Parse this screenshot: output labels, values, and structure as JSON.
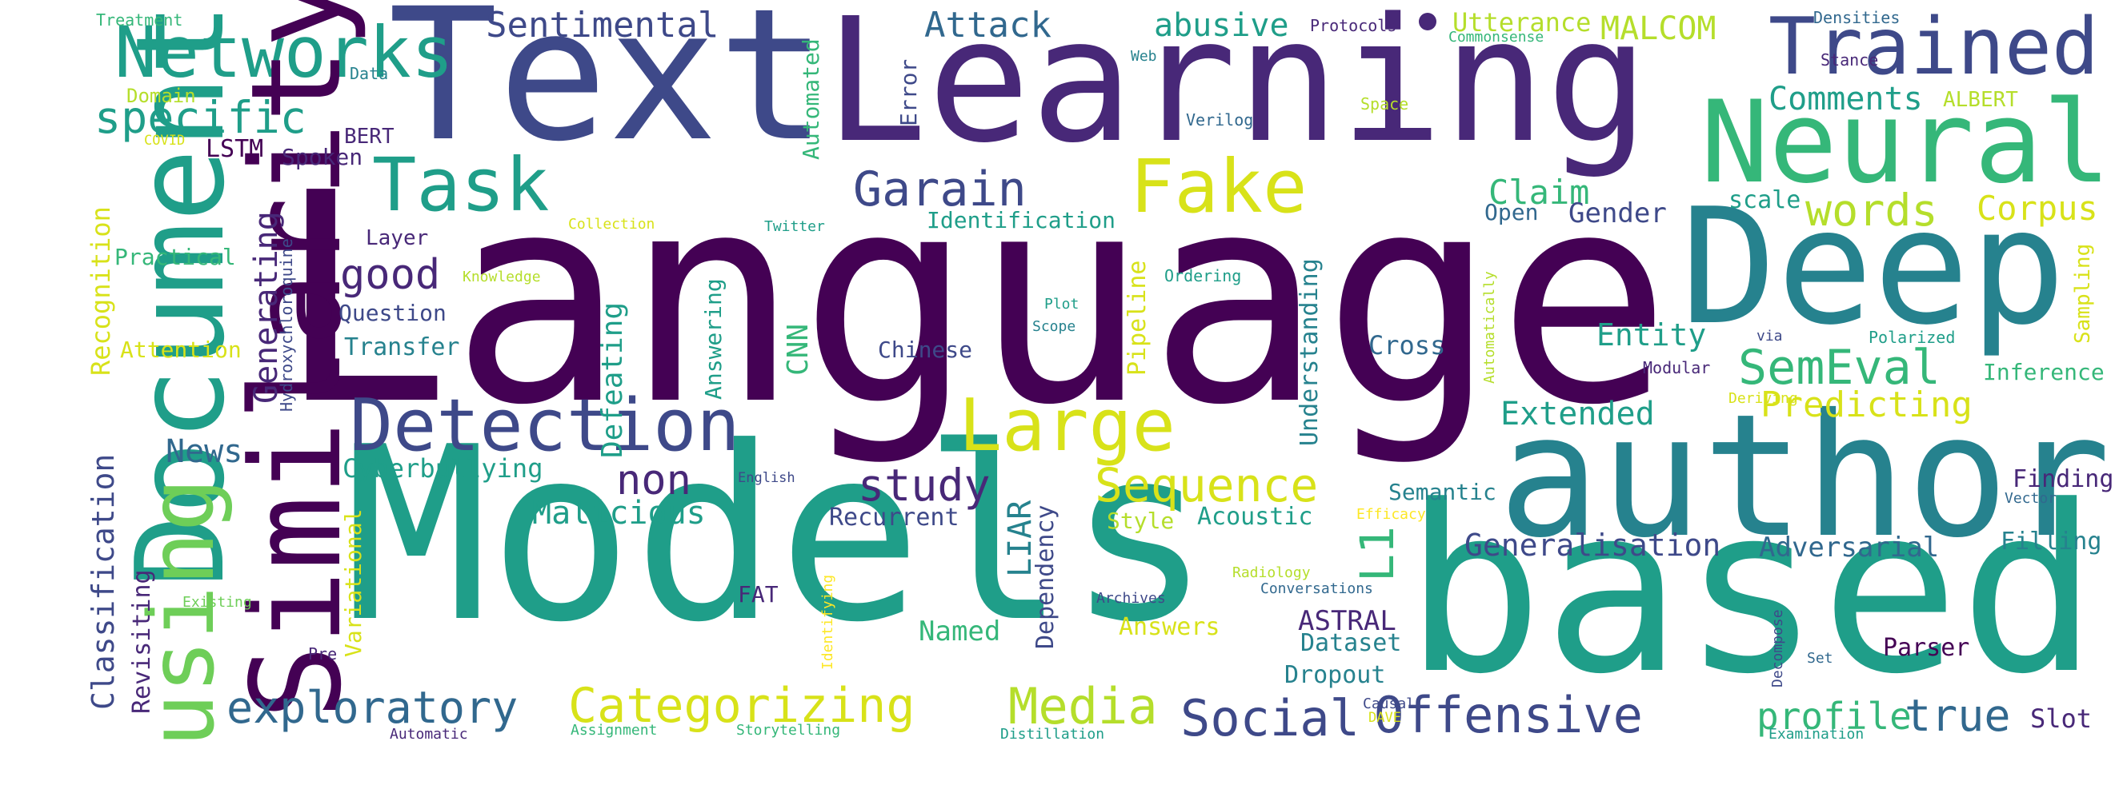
{
  "palette": {
    "p1": "#440154",
    "p2": "#482878",
    "p3": "#3e4989",
    "p4": "#31688e",
    "p5": "#26828e",
    "p6": "#1f9e89",
    "p7": "#35b779",
    "p8": "#6ece58",
    "p9": "#b5de2b",
    "p10": "#d8e219",
    "p11": "#fde725"
  },
  "words": [
    {
      "t": "Language",
      "c": "p1"
    },
    {
      "t": "Models",
      "c": "p6"
    },
    {
      "t": "based",
      "c": "p6"
    },
    {
      "t": "Text",
      "c": "p3"
    },
    {
      "t": "Learning",
      "c": "p2"
    },
    {
      "t": "author",
      "c": "p5"
    },
    {
      "t": "Deep",
      "c": "p5"
    },
    {
      "t": "Neural",
      "c": "p7"
    },
    {
      "t": "Trained",
      "c": "p3"
    },
    {
      "t": "Task",
      "c": "p6"
    },
    {
      "t": "Fake",
      "c": "p10"
    },
    {
      "t": "Large",
      "c": "p10"
    },
    {
      "t": "Detection",
      "c": "p3"
    },
    {
      "t": "Networks",
      "c": "p6"
    },
    {
      "t": "Document",
      "c": "p6"
    },
    {
      "t": "Similarity",
      "c": "p1"
    },
    {
      "t": "using",
      "c": "p8"
    },
    {
      "t": "specific",
      "c": "p6"
    },
    {
      "t": "Garain",
      "c": "p3"
    },
    {
      "t": "Sentimental",
      "c": "p3"
    },
    {
      "t": "Attack",
      "c": "p4"
    },
    {
      "t": "abusive",
      "c": "p6"
    },
    {
      "t": "Utterance",
      "c": "p9"
    },
    {
      "t": "MALCOM",
      "c": "p9"
    },
    {
      "t": "Comments",
      "c": "p6"
    },
    {
      "t": "ALBERT",
      "c": "p9"
    },
    {
      "t": "Claim",
      "c": "p7"
    },
    {
      "t": "words",
      "c": "p9"
    },
    {
      "t": "Corpus",
      "c": "p10"
    },
    {
      "t": "Gender",
      "c": "p3"
    },
    {
      "t": "scale",
      "c": "p6"
    },
    {
      "t": "Open",
      "c": "p4"
    },
    {
      "t": "SemEval",
      "c": "p7"
    },
    {
      "t": "Predicting",
      "c": "p10"
    },
    {
      "t": "Extended",
      "c": "p6"
    },
    {
      "t": "Entity",
      "c": "p6"
    },
    {
      "t": "Inference",
      "c": "p7"
    },
    {
      "t": "Sequence",
      "c": "p10"
    },
    {
      "t": "study",
      "c": "p2"
    },
    {
      "t": "non",
      "c": "p2"
    },
    {
      "t": "News",
      "c": "p4"
    },
    {
      "t": "Cyberbullying",
      "c": "p6"
    },
    {
      "t": "Malicious",
      "c": "p6"
    },
    {
      "t": "Recurrent",
      "c": "p3"
    },
    {
      "t": "Style",
      "c": "p9"
    },
    {
      "t": "Acoustic",
      "c": "p6"
    },
    {
      "t": "Semantic",
      "c": "p5"
    },
    {
      "t": "Finding",
      "c": "p2"
    },
    {
      "t": "Generalisation",
      "c": "p3"
    },
    {
      "t": "Adversarial",
      "c": "p4"
    },
    {
      "t": "Filling",
      "c": "p5"
    },
    {
      "t": "exploratory",
      "c": "p4"
    },
    {
      "t": "Categorizing",
      "c": "p10"
    },
    {
      "t": "Media",
      "c": "p9"
    },
    {
      "t": "Social",
      "c": "p3"
    },
    {
      "t": "Offensive",
      "c": "p3"
    },
    {
      "t": "profile",
      "c": "p7"
    },
    {
      "t": "true",
      "c": "p4"
    },
    {
      "t": "Slot",
      "c": "p2"
    },
    {
      "t": "Named",
      "c": "p7"
    },
    {
      "t": "Answers",
      "c": "p10"
    },
    {
      "t": "ASTRAL",
      "c": "p2"
    },
    {
      "t": "Dataset",
      "c": "p5"
    },
    {
      "t": "Dropout",
      "c": "p5"
    },
    {
      "t": "Parser",
      "c": "p1"
    },
    {
      "t": "FAT",
      "c": "p2"
    },
    {
      "t": "good",
      "c": "p2"
    },
    {
      "t": "Question",
      "c": "p3"
    },
    {
      "t": "Transfer",
      "c": "p5"
    },
    {
      "t": "Layer",
      "c": "p2"
    },
    {
      "t": "Chinese",
      "c": "p3"
    },
    {
      "t": "Cross",
      "c": "p4"
    },
    {
      "t": "Attention",
      "c": "p10"
    },
    {
      "t": "Practical",
      "c": "p7"
    },
    {
      "t": "Identification",
      "c": "p6"
    },
    {
      "t": "Spoken",
      "c": "p2"
    },
    {
      "t": "BERT",
      "c": "p2"
    },
    {
      "t": "LSTM",
      "c": "p1"
    },
    {
      "t": "Domain",
      "c": "p9"
    },
    {
      "t": "Treatment",
      "c": "p7"
    },
    {
      "t": "Data",
      "c": "p5"
    },
    {
      "t": "Protocols",
      "c": "p2"
    },
    {
      "t": "Densities",
      "c": "p4"
    },
    {
      "t": "Commonsense",
      "c": "p7"
    },
    {
      "t": "Stance",
      "c": "p2"
    },
    {
      "t": "Web",
      "c": "p5"
    },
    {
      "t": "Space",
      "c": "p9"
    },
    {
      "t": "Verilog",
      "c": "p4"
    },
    {
      "t": "COVID",
      "c": "p10"
    },
    {
      "t": "Collection",
      "c": "p10"
    },
    {
      "t": "Twitter",
      "c": "p6"
    },
    {
      "t": "Knowledge",
      "c": "p9"
    },
    {
      "t": "Ordering",
      "c": "p6"
    },
    {
      "t": "Plot",
      "c": "p6"
    },
    {
      "t": "Scope",
      "c": "p5"
    },
    {
      "t": "via",
      "c": "p3"
    },
    {
      "t": "Polarized",
      "c": "p6"
    },
    {
      "t": "Modular",
      "c": "p2"
    },
    {
      "t": "Deriving",
      "c": "p10"
    },
    {
      "t": "English",
      "c": "p3"
    },
    {
      "t": "Efficacy",
      "c": "p11"
    },
    {
      "t": "Vector",
      "c": "p4"
    },
    {
      "t": "Existing",
      "c": "p8"
    },
    {
      "t": "Radiology",
      "c": "p9"
    },
    {
      "t": "Archives",
      "c": "p3"
    },
    {
      "t": "Conversations",
      "c": "p4"
    },
    {
      "t": "Pre",
      "c": "p2"
    },
    {
      "t": "Set",
      "c": "p4"
    },
    {
      "t": "Causal",
      "c": "p3"
    },
    {
      "t": "DAVE",
      "c": "p10"
    },
    {
      "t": "Automatic",
      "c": "p2"
    },
    {
      "t": "Assignment",
      "c": "p7"
    },
    {
      "t": "Storytelling",
      "c": "p7"
    },
    {
      "t": "Distillation",
      "c": "p6"
    },
    {
      "t": "Examination",
      "c": "p6"
    },
    {
      "t": "Recognition",
      "c": "p10"
    },
    {
      "t": "Classification",
      "c": "p3"
    },
    {
      "t": "Revisiting",
      "c": "p2"
    },
    {
      "t": "Generating",
      "c": "p2"
    },
    {
      "t": "Hydroxychloroquine",
      "c": "p3"
    },
    {
      "t": "Variational",
      "c": "p10"
    },
    {
      "t": "Automated",
      "c": "p7"
    },
    {
      "t": "Error",
      "c": "p3"
    },
    {
      "t": "Defeating",
      "c": "p6"
    },
    {
      "t": "Answering",
      "c": "p6"
    },
    {
      "t": "CNN",
      "c": "p7"
    },
    {
      "t": "Pipeline",
      "c": "p10"
    },
    {
      "t": "Understanding",
      "c": "p5"
    },
    {
      "t": "Automatically",
      "c": "p9"
    },
    {
      "t": "LIAR",
      "c": "p5"
    },
    {
      "t": "Dependency",
      "c": "p3"
    },
    {
      "t": "L1",
      "c": "p7"
    },
    {
      "t": "Identifying",
      "c": "p11"
    },
    {
      "t": "Decompose",
      "c": "p3"
    },
    {
      "t": "Sampling",
      "c": "p10"
    }
  ]
}
